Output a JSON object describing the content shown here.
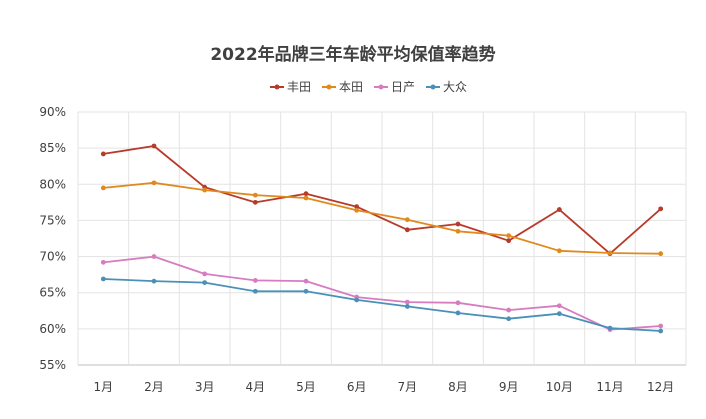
{
  "chart_data": {
    "type": "line",
    "title": "2022年品牌三年车龄平均保值率趋势",
    "xlabel": "",
    "ylabel": "",
    "categories": [
      "1月",
      "2月",
      "3月",
      "4月",
      "5月",
      "6月",
      "7月",
      "8月",
      "9月",
      "10月",
      "11月",
      "12月"
    ],
    "y_ticks": [
      "55%",
      "60%",
      "65%",
      "70%",
      "75%",
      "80%",
      "85%",
      "90%"
    ],
    "ylim": [
      55,
      90
    ],
    "y_unit": "%",
    "grid": true,
    "legend_position": "top",
    "series": [
      {
        "name": "丰田",
        "color": "#B83A2A",
        "values": [
          84.2,
          85.3,
          79.6,
          77.5,
          78.7,
          76.9,
          73.7,
          74.5,
          72.2,
          76.5,
          70.4,
          76.6
        ]
      },
      {
        "name": "本田",
        "color": "#E08A1E",
        "values": [
          79.5,
          80.2,
          79.2,
          78.5,
          78.1,
          76.4,
          75.1,
          73.5,
          72.9,
          70.8,
          70.5,
          70.4
        ]
      },
      {
        "name": "日产",
        "color": "#D77CC1",
        "values": [
          69.2,
          70.0,
          67.6,
          66.7,
          66.6,
          64.4,
          63.7,
          63.6,
          62.6,
          63.2,
          59.9,
          60.4
        ]
      },
      {
        "name": "大众",
        "color": "#4A90B8",
        "values": [
          66.9,
          66.6,
          66.4,
          65.2,
          65.2,
          64.0,
          63.1,
          62.2,
          61.4,
          62.1,
          60.1,
          59.7
        ]
      }
    ]
  }
}
